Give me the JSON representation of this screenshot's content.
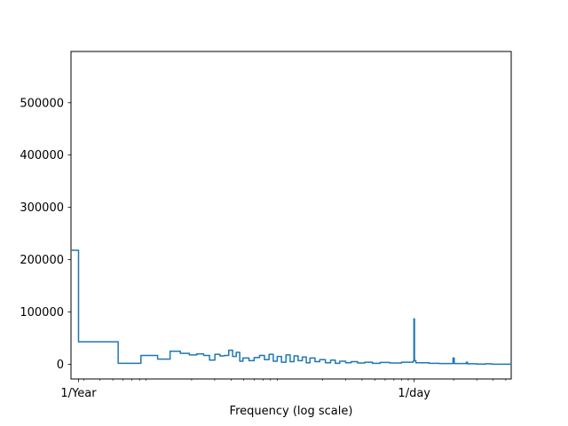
{
  "chart_data": {
    "type": "line",
    "title": "",
    "xlabel": "Frequency (log scale)",
    "ylabel": "",
    "x_scale": "log",
    "x_unit": "cycles per day",
    "x_range": [
      0.0024,
      5.5
    ],
    "ylim": [
      -28000,
      598000
    ],
    "y_ticks": [
      0,
      100000,
      200000,
      300000,
      400000,
      500000
    ],
    "y_tick_labels": [
      "0",
      "100000",
      "200000",
      "300000",
      "400000",
      "500000"
    ],
    "x_ticks": [
      {
        "value": 0.0027397,
        "label": "1/Year"
      },
      {
        "value": 1,
        "label": "1/day"
      }
    ],
    "x_minor_ticks": [
      0.003,
      0.004,
      0.005,
      0.006,
      0.007,
      0.008,
      0.009,
      0.02,
      0.03,
      0.04,
      0.05,
      0.06,
      0.07,
      0.08,
      0.09,
      0.2,
      0.3,
      0.4,
      0.5,
      0.6,
      0.7,
      0.8,
      0.9,
      2,
      3,
      4,
      5
    ],
    "grid": false,
    "line_color": "#1f77b4",
    "series": [
      {
        "style": "steps",
        "values": [
          [
            0.0024,
            218000
          ],
          [
            0.00274,
            218000
          ],
          [
            0.00274,
            43000
          ],
          [
            0.0055,
            43000
          ],
          [
            0.0055,
            2000
          ],
          [
            0.0082,
            2000
          ],
          [
            0.0082,
            17000
          ],
          [
            0.011,
            17000
          ],
          [
            0.011,
            10000
          ],
          [
            0.0137,
            10000
          ],
          [
            0.0137,
            25000
          ],
          [
            0.0164,
            25000
          ],
          [
            0.0164,
            21000
          ],
          [
            0.0192,
            21000
          ],
          [
            0.0192,
            18000
          ],
          [
            0.0219,
            18000
          ],
          [
            0.0219,
            20000
          ],
          [
            0.0247,
            20000
          ],
          [
            0.0247,
            17000
          ],
          [
            0.0274,
            17000
          ],
          [
            0.0274,
            8000
          ],
          [
            0.0301,
            8000
          ],
          [
            0.0301,
            19000
          ],
          [
            0.0329,
            19000
          ],
          [
            0.0329,
            16000
          ],
          [
            0.0356,
            16000
          ],
          [
            0.0356,
            17000
          ],
          [
            0.0384,
            17000
          ],
          [
            0.0384,
            27000
          ],
          [
            0.0411,
            27000
          ],
          [
            0.0411,
            15000
          ],
          [
            0.0438,
            15000
          ],
          [
            0.0438,
            23000
          ],
          [
            0.0466,
            23000
          ],
          [
            0.0466,
            6000
          ],
          [
            0.0493,
            6000
          ],
          [
            0.0493,
            12000
          ],
          [
            0.0548,
            12000
          ],
          [
            0.0548,
            7000
          ],
          [
            0.06,
            7000
          ],
          [
            0.06,
            13000
          ],
          [
            0.066,
            13000
          ],
          [
            0.066,
            17000
          ],
          [
            0.072,
            17000
          ],
          [
            0.072,
            9000
          ],
          [
            0.078,
            9000
          ],
          [
            0.078,
            19000
          ],
          [
            0.084,
            19000
          ],
          [
            0.084,
            6000
          ],
          [
            0.09,
            6000
          ],
          [
            0.09,
            15000
          ],
          [
            0.097,
            15000
          ],
          [
            0.097,
            4000
          ],
          [
            0.105,
            4000
          ],
          [
            0.105,
            18000
          ],
          [
            0.113,
            18000
          ],
          [
            0.113,
            5000
          ],
          [
            0.121,
            5000
          ],
          [
            0.121,
            16000
          ],
          [
            0.13,
            16000
          ],
          [
            0.13,
            7000
          ],
          [
            0.14,
            7000
          ],
          [
            0.14,
            14000
          ],
          [
            0.15,
            14000
          ],
          [
            0.15,
            3000
          ],
          [
            0.16,
            3000
          ],
          [
            0.16,
            12000
          ],
          [
            0.175,
            12000
          ],
          [
            0.175,
            5000
          ],
          [
            0.19,
            5000
          ],
          [
            0.19,
            9000
          ],
          [
            0.21,
            9000
          ],
          [
            0.21,
            3000
          ],
          [
            0.23,
            3000
          ],
          [
            0.23,
            8000
          ],
          [
            0.25,
            8000
          ],
          [
            0.25,
            2000
          ],
          [
            0.27,
            2000
          ],
          [
            0.27,
            6000
          ],
          [
            0.3,
            6000
          ],
          [
            0.3,
            3000
          ],
          [
            0.33,
            3000
          ],
          [
            0.33,
            5000
          ],
          [
            0.37,
            5000
          ],
          [
            0.37,
            2500
          ],
          [
            0.42,
            2500
          ],
          [
            0.42,
            4000
          ],
          [
            0.48,
            4000
          ],
          [
            0.48,
            2000
          ],
          [
            0.55,
            2000
          ],
          [
            0.55,
            3500
          ],
          [
            0.65,
            3500
          ],
          [
            0.65,
            2500
          ],
          [
            0.8,
            2500
          ],
          [
            0.8,
            4000
          ],
          [
            0.98,
            4000
          ],
          [
            0.98,
            6000
          ],
          [
            0.995,
            6000
          ],
          [
            0.995,
            87000
          ],
          [
            1.005,
            87000
          ],
          [
            1.005,
            7000
          ],
          [
            1.03,
            7000
          ],
          [
            1.03,
            3000
          ],
          [
            1.3,
            3000
          ],
          [
            1.3,
            2000
          ],
          [
            1.55,
            2000
          ],
          [
            1.55,
            1500
          ],
          [
            1.98,
            1500
          ],
          [
            1.98,
            12000
          ],
          [
            2.02,
            12000
          ],
          [
            2.02,
            1500
          ],
          [
            2.5,
            1500
          ],
          [
            2.5,
            4000
          ],
          [
            2.55,
            4000
          ],
          [
            2.55,
            1000
          ],
          [
            3.0,
            1000
          ],
          [
            3.0,
            500
          ],
          [
            3.5,
            500
          ],
          [
            3.5,
            1000
          ],
          [
            3.9,
            1000
          ],
          [
            3.9,
            300
          ],
          [
            5.5,
            300
          ]
        ]
      }
    ]
  }
}
